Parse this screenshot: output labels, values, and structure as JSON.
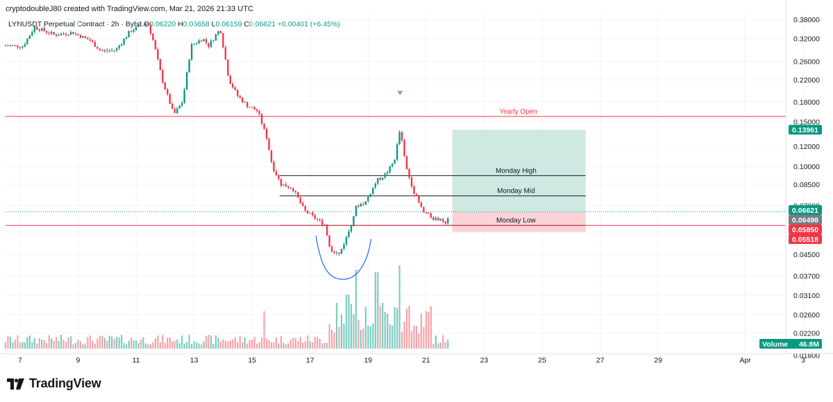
{
  "header": {
    "credit": "cryptodoubleJ80 created with TradingView.com, Mar 21, 2026 21:33 UTC",
    "symbol": "LYNUSDT Perpetual Contract · 2h · Bybit",
    "o_label": "O",
    "o_value": "0.06220",
    "h_label": "H",
    "h_value": "0.06658",
    "l_label": "L",
    "l_value": "0.06159",
    "c_label": "C",
    "c_value": "0.06621",
    "change": "+0.00401 (+6.45%)"
  },
  "colors": {
    "up": "#089981",
    "down": "#f23645",
    "vol_up": "#7fcbc0",
    "vol_down": "#f5a3a9",
    "target_zone": "#cfe9e2",
    "stop_zone": "#fbd3d6",
    "yearly_open": "#f23645",
    "monday_lines": "#131722",
    "drawing": "#2962ff"
  },
  "levels": {
    "yearly_open": {
      "label": "Yearly Open",
      "value": 0.1575
    },
    "monday_high": {
      "label": "Monday High",
      "value": 0.092
    },
    "monday_mid": {
      "label": "Monday Mid",
      "value": 0.0765
    },
    "monday_low": {
      "label": "Monday Low",
      "value": 0.0585
    }
  },
  "position": {
    "entry": 0.06621,
    "target": 0.13961,
    "stop": 0.05518
  },
  "price_tags": [
    {
      "text": "0.13961",
      "value": 0.13961,
      "color": "#089981"
    },
    {
      "text": "0.06621",
      "value": 0.06621,
      "color": "#089981"
    },
    {
      "text": "0.06498",
      "value": 0.06498,
      "color": "#787b86"
    },
    {
      "text": "0.05850",
      "value": 0.0585,
      "color": "#f23645"
    },
    {
      "text": "0.05518",
      "value": 0.05518,
      "color": "#f23645"
    }
  ],
  "volume": {
    "label": "Volume",
    "value": "46.8M",
    "color": "#089981"
  },
  "brand": "TradingView",
  "chart_data": {
    "type": "candlestick",
    "timeframe": "2h",
    "y_scale": "log",
    "ylim": [
      0.0185,
      0.4
    ],
    "xlim_days": [
      6.5,
      33.4
    ],
    "y_ticks": [
      "0.38000",
      "0.32000",
      "0.26000",
      "0.22000",
      "0.18000",
      "0.15000",
      "0.12000",
      "0.10000",
      "0.08500",
      "0.07000",
      "0.05500",
      "0.04500",
      "0.03700",
      "0.03100",
      "0.02600",
      "0.02200",
      "0.01800"
    ],
    "x_ticks": [
      {
        "label": "7",
        "day": 7
      },
      {
        "label": "9",
        "day": 9
      },
      {
        "label": "11",
        "day": 11
      },
      {
        "label": "13",
        "day": 13
      },
      {
        "label": "15",
        "day": 15
      },
      {
        "label": "17",
        "day": 17
      },
      {
        "label": "19",
        "day": 19
      },
      {
        "label": "21",
        "day": 21
      },
      {
        "label": "23",
        "day": 23
      },
      {
        "label": "25",
        "day": 25
      },
      {
        "label": "27",
        "day": 27
      },
      {
        "label": "29",
        "day": 29
      },
      {
        "label": "Apr",
        "day": 32
      },
      {
        "label": "3",
        "day": 34
      }
    ],
    "price_path": [
      [
        6.5,
        0.3
      ],
      [
        7.1,
        0.298
      ],
      [
        7.5,
        0.355
      ],
      [
        8.2,
        0.33
      ],
      [
        8.8,
        0.338
      ],
      [
        9.4,
        0.315
      ],
      [
        9.8,
        0.285
      ],
      [
        10.3,
        0.288
      ],
      [
        10.8,
        0.342
      ],
      [
        11.4,
        0.37
      ],
      [
        11.6,
        0.31
      ],
      [
        11.9,
        0.22
      ],
      [
        12.3,
        0.16
      ],
      [
        12.6,
        0.18
      ],
      [
        12.9,
        0.3
      ],
      [
        13.3,
        0.32
      ],
      [
        13.5,
        0.3
      ],
      [
        13.9,
        0.35
      ],
      [
        14.2,
        0.22
      ],
      [
        14.5,
        0.19
      ],
      [
        14.8,
        0.175
      ],
      [
        15.2,
        0.165
      ],
      [
        15.5,
        0.13
      ],
      [
        15.7,
        0.1
      ],
      [
        16.0,
        0.085
      ],
      [
        16.4,
        0.082
      ],
      [
        16.8,
        0.067
      ],
      [
        17.3,
        0.061
      ],
      [
        17.5,
        0.059
      ],
      [
        17.7,
        0.047
      ],
      [
        18.0,
        0.045
      ],
      [
        18.3,
        0.054
      ],
      [
        18.6,
        0.07
      ],
      [
        18.9,
        0.072
      ],
      [
        19.3,
        0.088
      ],
      [
        19.6,
        0.093
      ],
      [
        19.9,
        0.105
      ],
      [
        20.1,
        0.14
      ],
      [
        20.3,
        0.1
      ],
      [
        20.6,
        0.078
      ],
      [
        20.9,
        0.066
      ],
      [
        21.3,
        0.062
      ],
      [
        21.7,
        0.0605
      ],
      [
        21.8,
        0.0662
      ]
    ],
    "volume_spikes": [
      [
        17.9,
        0.55
      ],
      [
        18.3,
        0.65
      ],
      [
        18.6,
        0.95
      ],
      [
        19.3,
        0.92
      ],
      [
        19.5,
        0.55
      ],
      [
        19.9,
        0.5
      ],
      [
        20.1,
        1.0
      ],
      [
        20.35,
        0.48
      ],
      [
        21.0,
        0.45
      ],
      [
        15.4,
        0.45
      ]
    ]
  }
}
